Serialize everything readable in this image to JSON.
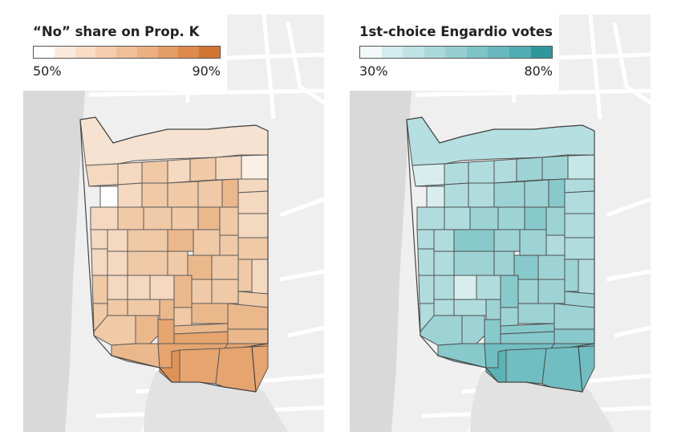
{
  "left_map": {
    "title": "“No” share on Prop. K",
    "legend_min": "50%",
    "legend_max": "90%",
    "colors": [
      "#ffffff",
      "#fbeadc",
      "#f8dcc6",
      "#f4cdae",
      "#f0be97",
      "#ecaf80",
      "#e59d66",
      "#dd8a4c",
      "#d27432"
    ],
    "tract_colors": {
      "north": "#f6e2d0",
      "nw_white": "#ffffff",
      "ne_pale": "#faf0e6",
      "light": "#f4d8bf",
      "mid": "#f0c9a6",
      "strong": "#ebb88c",
      "stronger": "#e6a46f",
      "darkest": "#df9256"
    }
  },
  "right_map": {
    "title": "1st-choice Engardio votes",
    "legend_min": "30%",
    "legend_max": "80%",
    "colors": [
      "#f2f9f9",
      "#d3eced",
      "#bfe3e4",
      "#aad9db",
      "#95cfd2",
      "#7fc4c8",
      "#69b9be",
      "#52adb2",
      "#2f979c"
    ],
    "tract_colors": {
      "north": "#b5dfe0",
      "nw_pale": "#d8eeee",
      "ne_pale": "#c6e6e7",
      "light": "#b0dcde",
      "mid": "#9dd3d5",
      "strong": "#88c9cc",
      "stronger": "#71bec2",
      "darkest": "#5cb3b7"
    }
  }
}
